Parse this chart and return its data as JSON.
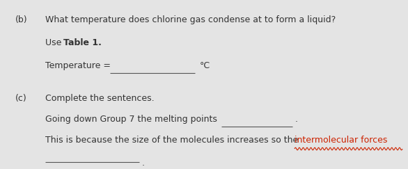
{
  "bg_color": "#e4e4e4",
  "part_b_label": "(b)",
  "part_b_question": "What temperature does chlorine gas condense at to form a liquid?",
  "use_text": "Use ",
  "table_bold": "Table 1.",
  "temperature_label": "Temperature = ",
  "degree_c": "°C",
  "part_c_label": "(c)",
  "part_c_intro": "Complete the sentences.",
  "sentence1": "Going down Group 7 the melting points ",
  "sentence2_plain": "This is because the size of the molecules increases so the ",
  "sentence2_red": "intermolecular forces",
  "line_color": "#555555",
  "red_color": "#cc2200",
  "text_color": "#333333",
  "fs": 9.0,
  "fig_w": 5.86,
  "fig_h": 2.43,
  "dpi": 100
}
